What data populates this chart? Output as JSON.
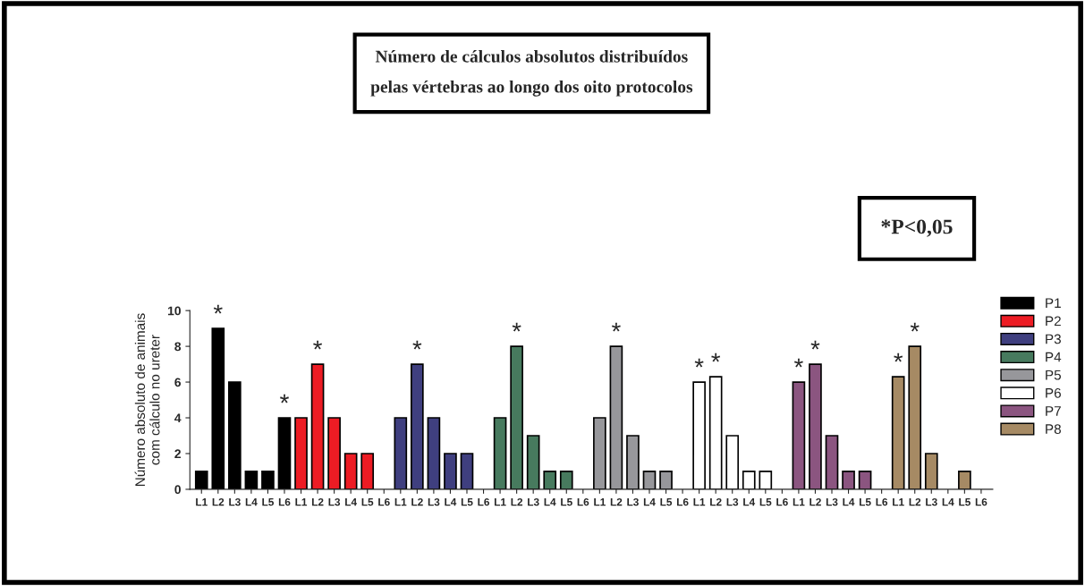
{
  "chart_data": {
    "type": "bar",
    "title": "Número de cálculos absolutos distribuídos\npelas vértebras ao longo dos oito protocolos",
    "ylabel": "Número absoluto de animais\ncom cálculo no ureter",
    "categories": [
      "L1",
      "L2",
      "L3",
      "L4",
      "L5",
      "L6",
      "L1",
      "L2",
      "L3",
      "L4",
      "L5",
      "L6",
      "L1",
      "L2",
      "L3",
      "L4",
      "L5",
      "L6",
      "L1",
      "L2",
      "L3",
      "L4",
      "L5",
      "L6",
      "L1",
      "L2",
      "L3",
      "L4",
      "L5",
      "L6",
      "L1",
      "L2",
      "L3",
      "L4",
      "L5",
      "L6",
      "L1",
      "L2",
      "L3",
      "L4",
      "L5",
      "L6",
      "L1",
      "L2",
      "L3",
      "L4",
      "L5",
      "L6"
    ],
    "series": [
      {
        "name": "P1",
        "color": "#000000",
        "values": [
          1,
          9,
          6,
          1,
          1,
          4,
          null,
          null,
          null,
          null,
          null,
          null,
          null,
          null,
          null,
          null,
          null,
          null,
          null,
          null,
          null,
          null,
          null,
          null,
          null,
          null,
          null,
          null,
          null,
          null,
          null,
          null,
          null,
          null,
          null,
          null,
          null,
          null,
          null,
          null,
          null,
          null,
          null,
          null,
          null,
          null,
          null,
          null
        ]
      },
      {
        "name": "P2",
        "color": "#ed1c24",
        "values": [
          null,
          null,
          null,
          null,
          null,
          null,
          4,
          7,
          4,
          2,
          2,
          null,
          null,
          null,
          null,
          null,
          null,
          null,
          null,
          null,
          null,
          null,
          null,
          null,
          null,
          null,
          null,
          null,
          null,
          null,
          null,
          null,
          null,
          null,
          null,
          null,
          null,
          null,
          null,
          null,
          null,
          null,
          null,
          null,
          null,
          null,
          null,
          null
        ]
      },
      {
        "name": "P3",
        "color": "#3f3f7f",
        "values": [
          null,
          null,
          null,
          null,
          null,
          null,
          null,
          null,
          null,
          null,
          null,
          null,
          4,
          7,
          4,
          2,
          2,
          null,
          null,
          null,
          null,
          null,
          null,
          null,
          null,
          null,
          null,
          null,
          null,
          null,
          null,
          null,
          null,
          null,
          null,
          null,
          null,
          null,
          null,
          null,
          null,
          null,
          null,
          null,
          null,
          null,
          null,
          null
        ]
      },
      {
        "name": "P4",
        "color": "#477a5e",
        "values": [
          null,
          null,
          null,
          null,
          null,
          null,
          null,
          null,
          null,
          null,
          null,
          null,
          null,
          null,
          null,
          null,
          null,
          null,
          4,
          8,
          3,
          1,
          1,
          null,
          null,
          null,
          null,
          null,
          null,
          null,
          null,
          null,
          null,
          null,
          null,
          null,
          null,
          null,
          null,
          null,
          null,
          null,
          null,
          null,
          null,
          null,
          null,
          null
        ]
      },
      {
        "name": "P5",
        "color": "#97979b",
        "values": [
          null,
          null,
          null,
          null,
          null,
          null,
          null,
          null,
          null,
          null,
          null,
          null,
          null,
          null,
          null,
          null,
          null,
          null,
          null,
          null,
          null,
          null,
          null,
          null,
          4,
          8,
          3,
          1,
          1,
          null,
          null,
          null,
          null,
          null,
          null,
          null,
          null,
          null,
          null,
          null,
          null,
          null,
          null,
          null,
          null,
          null,
          null,
          null
        ]
      },
      {
        "name": "P6",
        "color": "#ffffff",
        "values": [
          null,
          null,
          null,
          null,
          null,
          null,
          null,
          null,
          null,
          null,
          null,
          null,
          null,
          null,
          null,
          null,
          null,
          null,
          null,
          null,
          null,
          null,
          null,
          null,
          null,
          null,
          null,
          null,
          null,
          null,
          6,
          6.3,
          3,
          1,
          1,
          null,
          null,
          null,
          null,
          null,
          null,
          null,
          null,
          null,
          null,
          null,
          null,
          null
        ]
      },
      {
        "name": "P7",
        "color": "#8b5580",
        "values": [
          null,
          null,
          null,
          null,
          null,
          null,
          null,
          null,
          null,
          null,
          null,
          null,
          null,
          null,
          null,
          null,
          null,
          null,
          null,
          null,
          null,
          null,
          null,
          null,
          null,
          null,
          null,
          null,
          null,
          null,
          null,
          null,
          null,
          null,
          null,
          null,
          6,
          7,
          3,
          1,
          1,
          null,
          null,
          null,
          null,
          null,
          null,
          null
        ]
      },
      {
        "name": "P8",
        "color": "#a68a64",
        "values": [
          null,
          null,
          null,
          null,
          null,
          null,
          null,
          null,
          null,
          null,
          null,
          null,
          null,
          null,
          null,
          null,
          null,
          null,
          null,
          null,
          null,
          null,
          null,
          null,
          null,
          null,
          null,
          null,
          null,
          null,
          null,
          null,
          null,
          null,
          null,
          null,
          null,
          null,
          null,
          null,
          null,
          null,
          6.3,
          8,
          2,
          null,
          1,
          null
        ]
      }
    ],
    "ylim": [
      0,
      10
    ],
    "yticks": [
      0,
      2,
      4,
      6,
      8,
      10
    ],
    "grid": false,
    "legend": "top right",
    "annotations": [
      "*",
      "*",
      "*",
      "*",
      "*",
      "*",
      "*",
      "*",
      "*",
      "*",
      "*",
      "*",
      "*P<0,05"
    ]
  }
}
